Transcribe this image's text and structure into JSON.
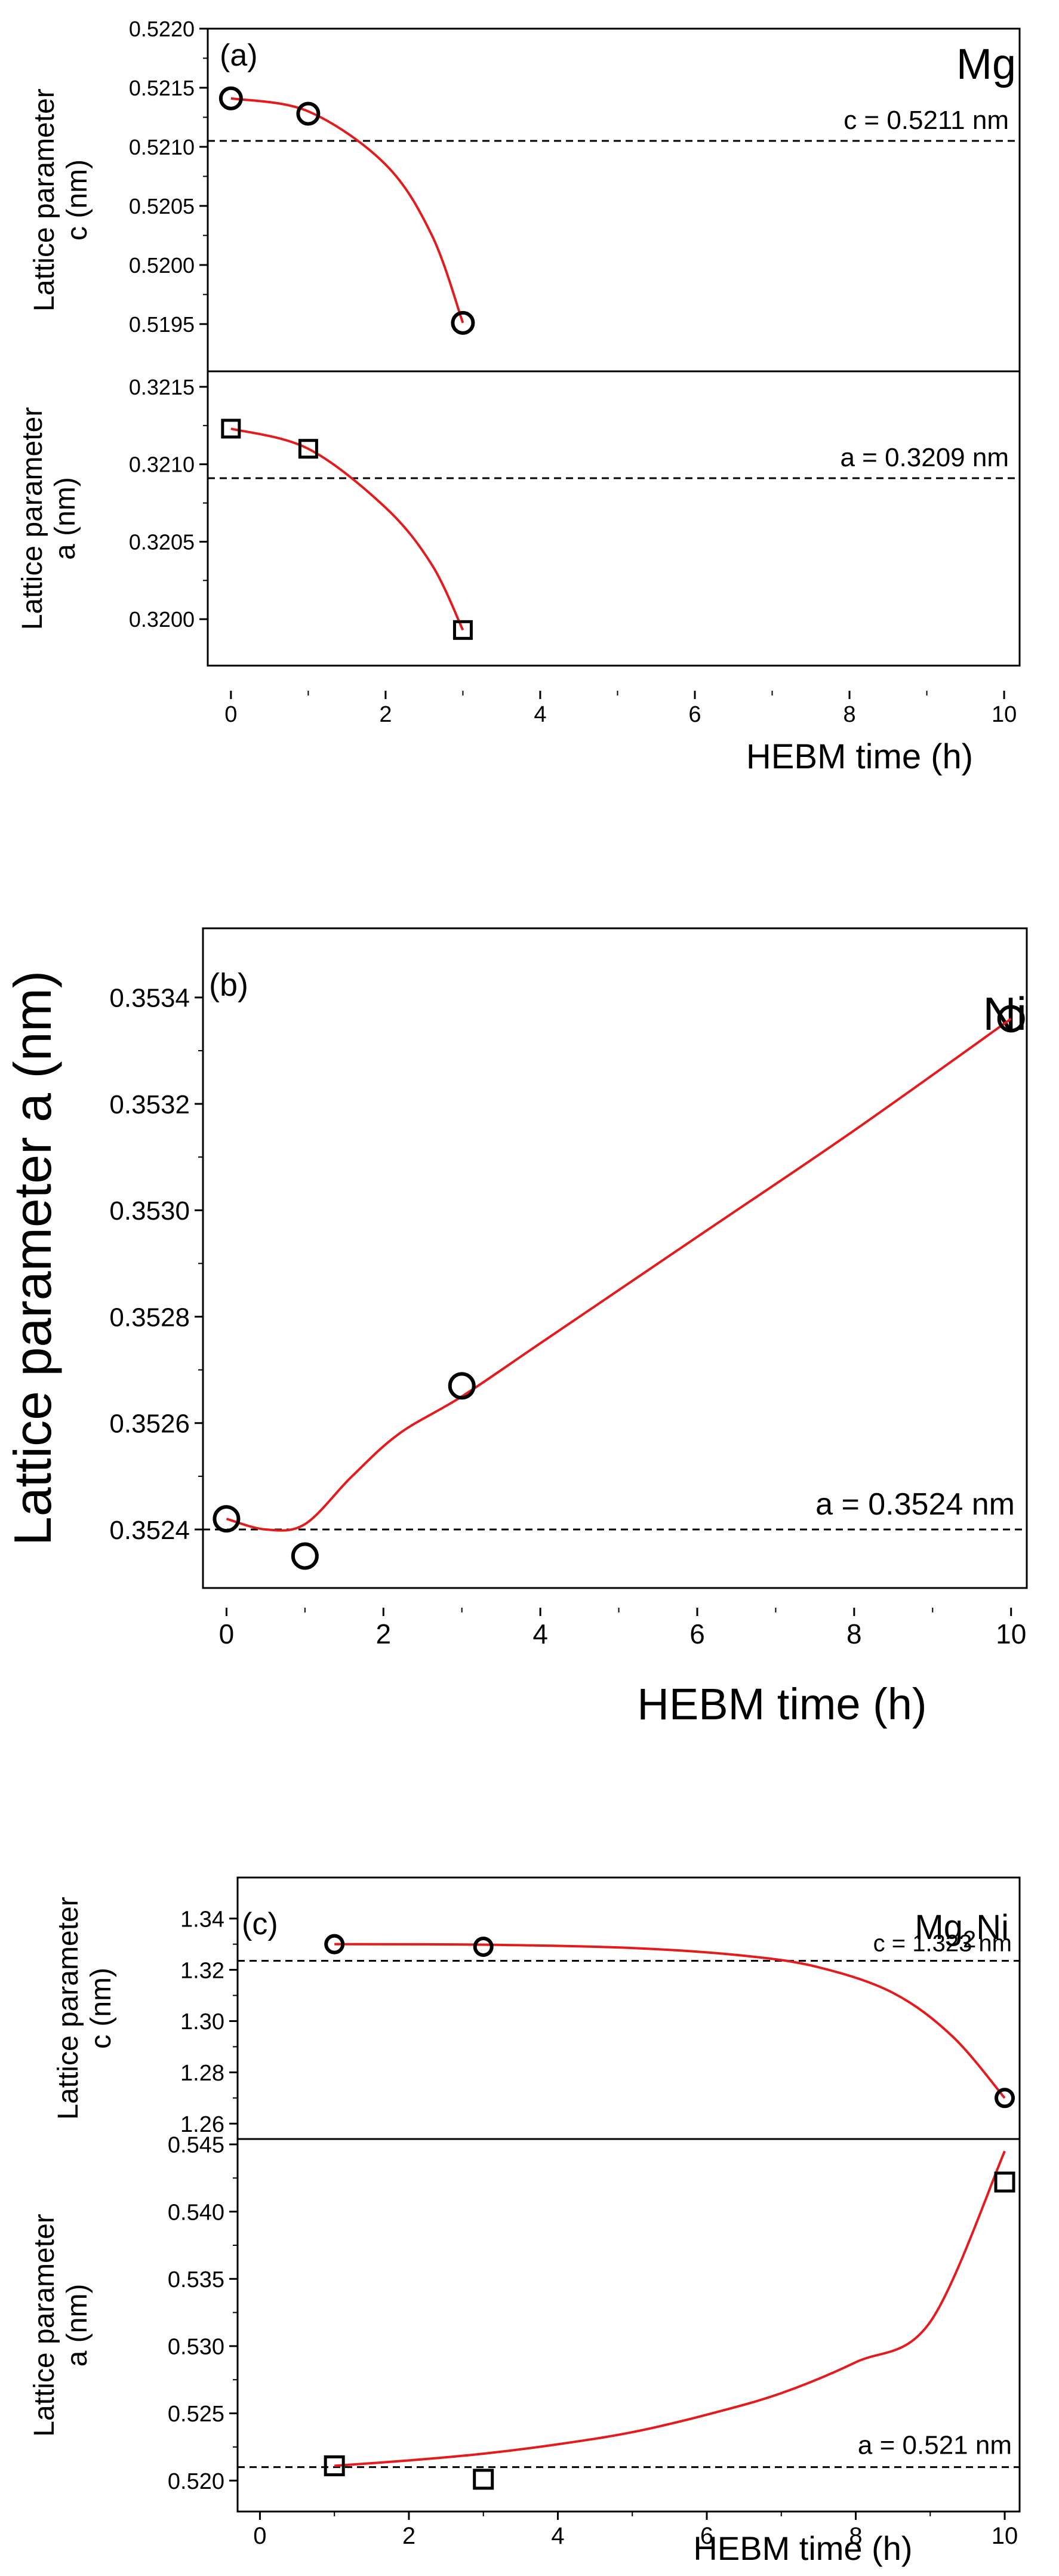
{
  "chart_data": [
    {
      "panel": "(a)",
      "material": "Mg",
      "type": "scatter",
      "xlabel": "HEBM time (h)",
      "x_ticks": [
        0,
        2,
        4,
        6,
        8,
        10
      ],
      "xlim": [
        -0.3,
        10.2
      ],
      "subplots": [
        {
          "ylabel_line1": "Lattice parameter",
          "ylabel_line2": "c (nm)",
          "ylim": [
            0.5191,
            0.522
          ],
          "y_ticks": [
            "0.5195",
            "0.5200",
            "0.5205",
            "0.5210",
            "0.5215",
            "0.5220"
          ],
          "marker": "circle",
          "points": [
            {
              "x": 0,
              "y": 0.52141
            },
            {
              "x": 1,
              "y": 0.52128
            },
            {
              "x": 3,
              "y": 0.51951
            }
          ],
          "fit": [
            [
              0,
              0.52141
            ],
            [
              1,
              0.5213
            ],
            [
              2,
              0.52085
            ],
            [
              2.6,
              0.52025
            ],
            [
              3,
              0.51951
            ]
          ],
          "reference": {
            "value": 0.52105,
            "label": "c = 0.5211 nm"
          }
        },
        {
          "ylabel_line1": "Lattice parameter",
          "ylabel_line2": "a (nm)",
          "ylim": [
            0.3197,
            0.3216
          ],
          "y_ticks": [
            "0.3200",
            "0.3205",
            "0.3210",
            "0.3215"
          ],
          "marker": "square",
          "points": [
            {
              "x": 0,
              "y": 0.32123
            },
            {
              "x": 1,
              "y": 0.3211
            },
            {
              "x": 3,
              "y": 0.31993
            }
          ],
          "fit": [
            [
              0,
              0.32123
            ],
            [
              1,
              0.3211
            ],
            [
              2,
              0.32072
            ],
            [
              2.6,
              0.32035
            ],
            [
              3,
              0.31993
            ]
          ],
          "reference": {
            "value": 0.32091,
            "label": "a = 0.3209 nm"
          }
        }
      ]
    },
    {
      "panel": "(b)",
      "material": "Ni",
      "type": "scatter",
      "xlabel": "HEBM time (h)",
      "x_ticks": [
        0,
        2,
        4,
        6,
        8,
        10
      ],
      "xlim": [
        -0.3,
        10.2
      ],
      "subplots": [
        {
          "ylabel_line1": "Lattice parameter a (nm)",
          "ylabel_line2": "",
          "ylim": [
            0.35229,
            0.35353
          ],
          "y_ticks": [
            "0.3524",
            "0.3526",
            "0.3528",
            "0.3530",
            "0.3532",
            "0.3534"
          ],
          "marker": "circle",
          "points": [
            {
              "x": 0,
              "y": 0.35242
            },
            {
              "x": 1,
              "y": 0.35235
            },
            {
              "x": 3,
              "y": 0.35267
            },
            {
              "x": 10,
              "y": 0.35336
            }
          ],
          "fit": [
            [
              0,
              0.35242
            ],
            [
              0.5,
              0.3524
            ],
            [
              1,
              0.35241
            ],
            [
              1.6,
              0.3525
            ],
            [
              2.2,
              0.35258
            ],
            [
              3,
              0.35265
            ],
            [
              4,
              0.35275
            ],
            [
              6,
              0.35295
            ],
            [
              8,
              0.35315
            ],
            [
              10,
              0.35336
            ]
          ],
          "reference": {
            "value": 0.3524,
            "label": "a = 0.3524 nm"
          }
        }
      ]
    },
    {
      "panel": "(c)",
      "material": "Mg2Ni",
      "material_base": "Mg",
      "material_sub": "2",
      "material_end": "Ni",
      "type": "scatter",
      "xlabel": "HEBM time (h)",
      "x_ticks": [
        0,
        2,
        4,
        6,
        8,
        10
      ],
      "xlim": [
        -0.3,
        10.2
      ],
      "subplots": [
        {
          "ylabel_line1": "Lattice parameter",
          "ylabel_line2": "c (nm)",
          "ylim": [
            1.254,
            1.356
          ],
          "y_ticks": [
            "1.26",
            "1.28",
            "1.30",
            "1.32",
            "1.34"
          ],
          "marker": "circle",
          "points": [
            {
              "x": 1,
              "y": 1.33
            },
            {
              "x": 3,
              "y": 1.329
            },
            {
              "x": 10,
              "y": 1.27
            }
          ],
          "fit": [
            [
              1,
              1.33
            ],
            [
              3,
              1.3298
            ],
            [
              5,
              1.3285
            ],
            [
              6.5,
              1.3255
            ],
            [
              7.5,
              1.321
            ],
            [
              8.5,
              1.311
            ],
            [
              9.3,
              1.294
            ],
            [
              10,
              1.27
            ]
          ],
          "reference": {
            "value": 1.3235,
            "label": "c = 1.323 nm"
          }
        },
        {
          "ylabel_line1": "Lattice parameter",
          "ylabel_line2": "a (nm)",
          "ylim": [
            0.5177,
            0.5454
          ],
          "y_ticks": [
            "0.520",
            "0.525",
            "0.530",
            "0.535",
            "0.540",
            "0.545"
          ],
          "marker": "square",
          "points": [
            {
              "x": 1,
              "y": 0.5211
            },
            {
              "x": 3,
              "y": 0.5201
            },
            {
              "x": 10,
              "y": 0.5422
            }
          ],
          "fit": [
            [
              1,
              0.5211
            ],
            [
              2,
              0.5215
            ],
            [
              3,
              0.522
            ],
            [
              4,
              0.5227
            ],
            [
              5,
              0.5236
            ],
            [
              6,
              0.5249
            ],
            [
              7,
              0.5265
            ],
            [
              8,
              0.5288
            ],
            [
              9,
              0.5318
            ],
            [
              10,
              0.5445
            ]
          ],
          "reference": {
            "value": 0.521,
            "label": "a = 0.521 nm"
          }
        }
      ]
    }
  ],
  "colors": {
    "fit": "#e41a1c",
    "axis": "#000000",
    "marker": "#000000"
  }
}
